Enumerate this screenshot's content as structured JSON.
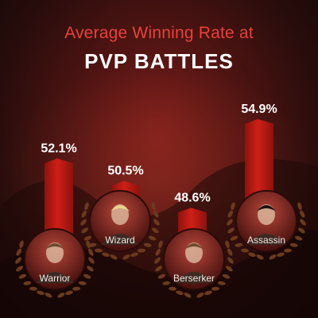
{
  "header": {
    "subtitle": "Average Winning Rate at",
    "title": "PVP BATTLES"
  },
  "colors": {
    "bar": "#cf1f16",
    "bar_dark": "#8c130d",
    "title_accent": "#e8423a",
    "laurel": "#6b3a1d"
  },
  "chart_data": {
    "type": "bar",
    "title": "Average Winning Rate at PVP BATTLES",
    "categories": [
      "Warrior",
      "Wizard",
      "Berserker",
      "Assassin"
    ],
    "values": [
      52.1,
      50.5,
      48.6,
      54.9
    ],
    "value_labels": [
      "52.1%",
      "50.5%",
      "48.6%",
      "54.9%"
    ],
    "unit": "%",
    "legend": "none",
    "grid": false
  }
}
